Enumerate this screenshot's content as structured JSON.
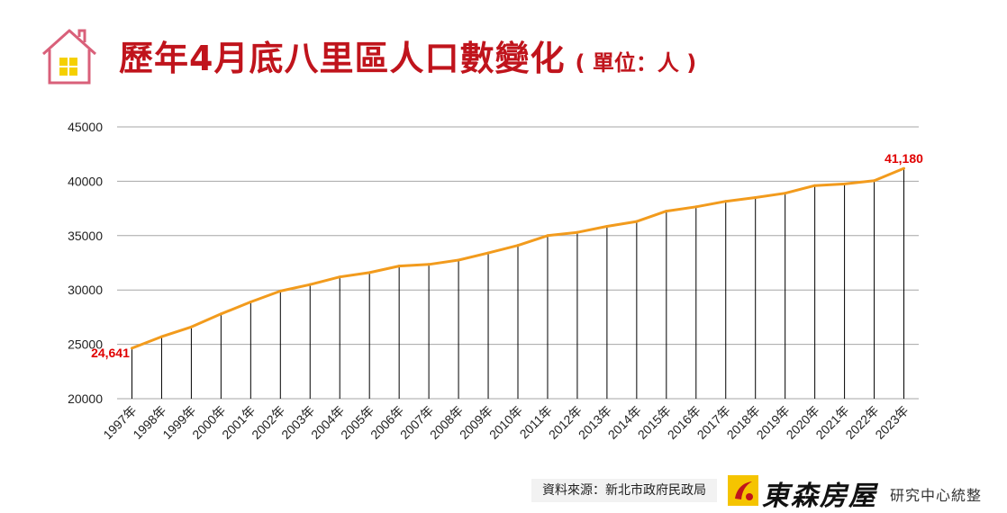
{
  "header": {
    "title": "歷年4月底八里區人口數變化",
    "unit": "( 單位：人 )"
  },
  "footer": {
    "source": "資料來源：新北市政府民政局",
    "brand_name": "東森房屋",
    "brand_sub": "研究中心統整"
  },
  "colors": {
    "title": "#c0141c",
    "line": "#f29b1d",
    "annotation": "#e00000",
    "grid": "#a6a6a6",
    "drop_lines": "#000000"
  },
  "icons": {
    "house": "house-with-window-icon",
    "brand": "brand-logo-icon"
  },
  "chart_data": {
    "type": "line",
    "title": "歷年4月底八里區人口數變化",
    "xlabel": "",
    "ylabel": "",
    "ylim": [
      20000,
      45000
    ],
    "yticks": [
      20000,
      25000,
      30000,
      35000,
      40000,
      45000
    ],
    "grid": true,
    "categories": [
      "1997年",
      "1998年",
      "1999年",
      "2000年",
      "2001年",
      "2002年",
      "2003年",
      "2004年",
      "2005年",
      "2006年",
      "2007年",
      "2008年",
      "2009年",
      "2010年",
      "2011年",
      "2012年",
      "2013年",
      "2014年",
      "2015年",
      "2016年",
      "2017年",
      "2018年",
      "2019年",
      "2020年",
      "2021年",
      "2022年",
      "2023年"
    ],
    "series": [
      {
        "values": [
          24641,
          25700,
          26600,
          27800,
          28900,
          29900,
          30500,
          31200,
          31600,
          32200,
          32350,
          32750,
          33400,
          34100,
          35000,
          35300,
          35850,
          36300,
          37250,
          37650,
          38150,
          38500,
          38900,
          39600,
          39750,
          40050,
          41180
        ]
      }
    ],
    "annotations": [
      {
        "x": "1997年",
        "label": "24,641"
      },
      {
        "x": "2023年",
        "label": "41,180"
      }
    ]
  }
}
